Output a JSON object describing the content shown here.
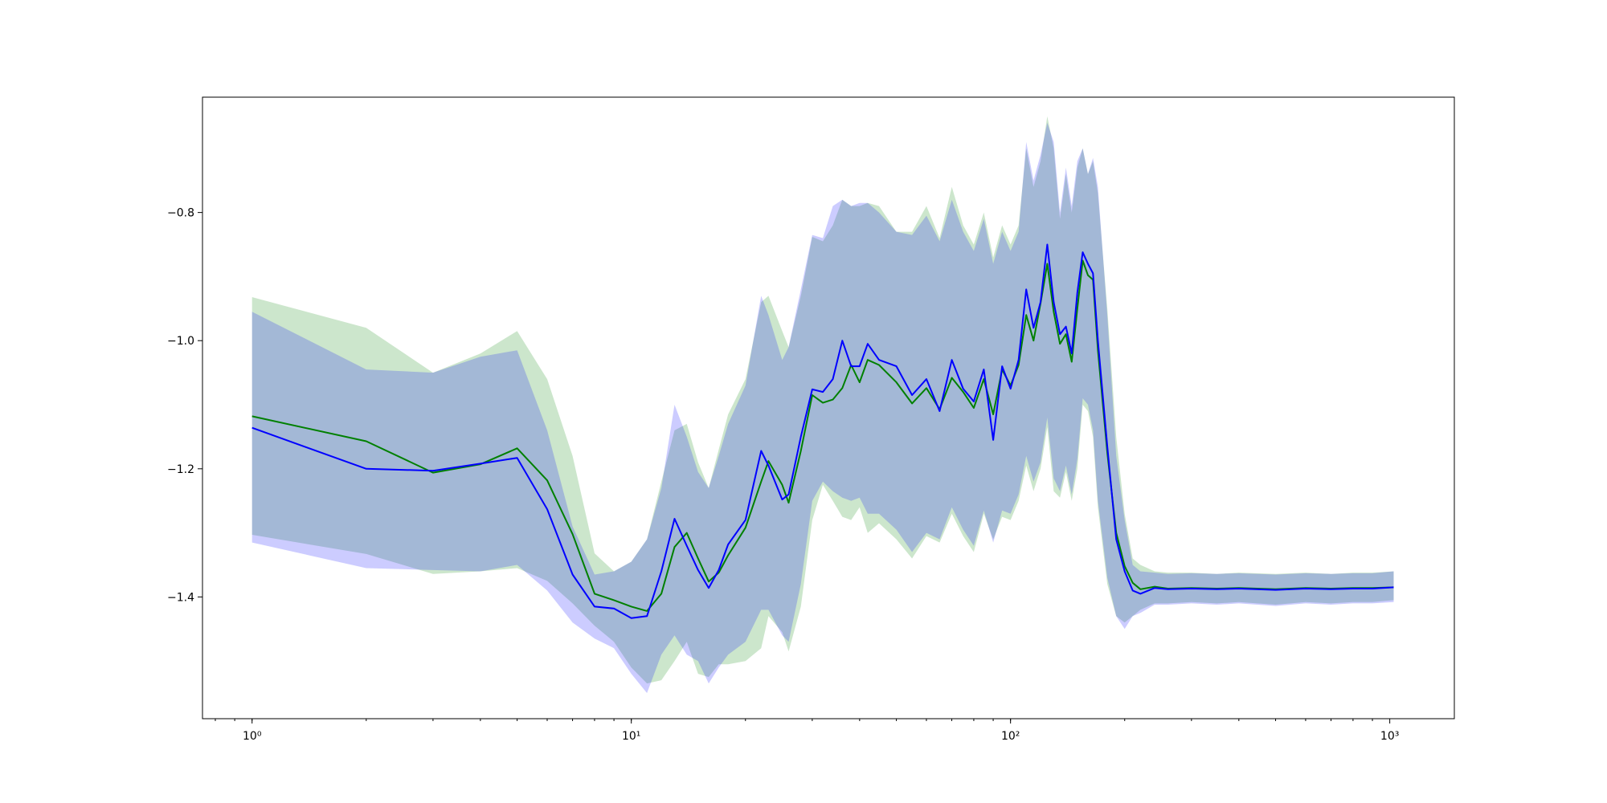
{
  "chart_data": {
    "type": "line",
    "title": "",
    "xlabel": "",
    "ylabel": "",
    "x_scale": "log",
    "xlim": [
      0.74,
      1480
    ],
    "ylim": [
      -1.59,
      -0.62
    ],
    "grid": false,
    "legend": "none",
    "x_ticks": [
      {
        "value": 1,
        "label": "10⁰"
      },
      {
        "value": 10,
        "label": "10¹"
      },
      {
        "value": 100,
        "label": "10²"
      },
      {
        "value": 1000,
        "label": "10³"
      }
    ],
    "y_ticks": [
      {
        "value": -1.4,
        "label": "−1.4"
      },
      {
        "value": -1.2,
        "label": "−1.2"
      },
      {
        "value": -1.0,
        "label": "−1.0"
      },
      {
        "value": -0.8,
        "label": "−0.8"
      }
    ],
    "series": [
      {
        "color": "#008000",
        "band_color": "#008000",
        "band_opacity": 0.2,
        "x": [
          1,
          2,
          3,
          4,
          5,
          6,
          7,
          8,
          9,
          10,
          11,
          12,
          13,
          14,
          15,
          16,
          17,
          18,
          20,
          22,
          23,
          25,
          26,
          28,
          30,
          32,
          34,
          36,
          38,
          40,
          42,
          45,
          50,
          55,
          60,
          65,
          70,
          75,
          80,
          85,
          90,
          95,
          100,
          105,
          110,
          115,
          120,
          125,
          130,
          135,
          140,
          145,
          150,
          155,
          160,
          165,
          170,
          180,
          190,
          200,
          210,
          220,
          240,
          260,
          300,
          350,
          400,
          500,
          600,
          700,
          800,
          900,
          1024
        ],
        "y": [
          -1.118,
          -1.157,
          -1.206,
          -1.193,
          -1.168,
          -1.218,
          -1.302,
          -1.395,
          -1.405,
          -1.415,
          -1.422,
          -1.395,
          -1.322,
          -1.3,
          -1.34,
          -1.376,
          -1.362,
          -1.335,
          -1.292,
          -1.22,
          -1.188,
          -1.225,
          -1.253,
          -1.172,
          -1.085,
          -1.097,
          -1.092,
          -1.074,
          -1.038,
          -1.065,
          -1.03,
          -1.038,
          -1.065,
          -1.098,
          -1.074,
          -1.107,
          -1.058,
          -1.08,
          -1.105,
          -1.06,
          -1.115,
          -1.045,
          -1.07,
          -1.038,
          -0.96,
          -1.0,
          -0.942,
          -0.88,
          -0.955,
          -1.005,
          -0.99,
          -1.033,
          -0.95,
          -0.875,
          -0.898,
          -0.905,
          -1.015,
          -1.175,
          -1.3,
          -1.352,
          -1.378,
          -1.388,
          -1.384,
          -1.387,
          -1.386,
          -1.387,
          -1.386,
          -1.388,
          -1.386,
          -1.387,
          -1.386,
          -1.386,
          -1.385
        ],
        "lower": [
          -1.303,
          -1.333,
          -1.364,
          -1.36,
          -1.355,
          -1.375,
          -1.41,
          -1.445,
          -1.47,
          -1.51,
          -1.535,
          -1.53,
          -1.5,
          -1.47,
          -1.52,
          -1.525,
          -1.505,
          -1.505,
          -1.5,
          -1.48,
          -1.43,
          -1.455,
          -1.485,
          -1.415,
          -1.28,
          -1.225,
          -1.25,
          -1.275,
          -1.28,
          -1.26,
          -1.3,
          -1.285,
          -1.31,
          -1.34,
          -1.305,
          -1.315,
          -1.27,
          -1.305,
          -1.33,
          -1.27,
          -1.31,
          -1.275,
          -1.28,
          -1.25,
          -1.195,
          -1.235,
          -1.2,
          -1.135,
          -1.235,
          -1.245,
          -1.205,
          -1.25,
          -1.2,
          -1.1,
          -1.11,
          -1.15,
          -1.26,
          -1.38,
          -1.43,
          -1.44,
          -1.43,
          -1.42,
          -1.41,
          -1.41,
          -1.408,
          -1.41,
          -1.408,
          -1.412,
          -1.408,
          -1.41,
          -1.408,
          -1.408,
          -1.405
        ],
        "upper": [
          -0.932,
          -0.98,
          -1.05,
          -1.02,
          -0.985,
          -1.06,
          -1.18,
          -1.332,
          -1.36,
          -1.345,
          -1.31,
          -1.22,
          -1.14,
          -1.13,
          -1.19,
          -1.23,
          -1.17,
          -1.115,
          -1.06,
          -0.94,
          -0.93,
          -0.985,
          -1.01,
          -0.93,
          -0.838,
          -0.845,
          -0.82,
          -0.78,
          -0.79,
          -0.79,
          -0.785,
          -0.79,
          -0.83,
          -0.83,
          -0.79,
          -0.84,
          -0.76,
          -0.82,
          -0.85,
          -0.8,
          -0.87,
          -0.82,
          -0.85,
          -0.82,
          -0.7,
          -0.76,
          -0.72,
          -0.65,
          -0.7,
          -0.81,
          -0.74,
          -0.8,
          -0.73,
          -0.7,
          -0.74,
          -0.72,
          -0.77,
          -0.95,
          -1.15,
          -1.27,
          -1.34,
          -1.35,
          -1.36,
          -1.362,
          -1.362,
          -1.364,
          -1.362,
          -1.364,
          -1.362,
          -1.364,
          -1.362,
          -1.362,
          -1.36
        ]
      },
      {
        "color": "#0000ff",
        "band_color": "#0000ff",
        "band_opacity": 0.2,
        "x": [
          1,
          2,
          3,
          4,
          5,
          6,
          7,
          8,
          9,
          10,
          11,
          12,
          13,
          14,
          15,
          16,
          17,
          18,
          20,
          22,
          23,
          25,
          26,
          28,
          30,
          32,
          34,
          36,
          38,
          40,
          42,
          45,
          50,
          55,
          60,
          65,
          70,
          75,
          80,
          85,
          90,
          95,
          100,
          105,
          110,
          115,
          120,
          125,
          130,
          135,
          140,
          145,
          150,
          155,
          160,
          165,
          170,
          180,
          190,
          200,
          210,
          220,
          240,
          260,
          300,
          350,
          400,
          500,
          600,
          700,
          800,
          900,
          1024
        ],
        "y": [
          -1.136,
          -1.2,
          -1.203,
          -1.192,
          -1.183,
          -1.263,
          -1.365,
          -1.415,
          -1.418,
          -1.433,
          -1.43,
          -1.36,
          -1.278,
          -1.32,
          -1.358,
          -1.386,
          -1.358,
          -1.318,
          -1.28,
          -1.172,
          -1.195,
          -1.248,
          -1.24,
          -1.15,
          -1.076,
          -1.08,
          -1.06,
          -1.0,
          -1.04,
          -1.04,
          -1.005,
          -1.03,
          -1.04,
          -1.085,
          -1.06,
          -1.11,
          -1.03,
          -1.075,
          -1.095,
          -1.045,
          -1.155,
          -1.04,
          -1.075,
          -1.03,
          -0.92,
          -0.98,
          -0.94,
          -0.85,
          -0.94,
          -0.99,
          -0.978,
          -1.02,
          -0.925,
          -0.862,
          -0.88,
          -0.895,
          -1.0,
          -1.165,
          -1.31,
          -1.36,
          -1.39,
          -1.395,
          -1.386,
          -1.388,
          -1.387,
          -1.388,
          -1.387,
          -1.389,
          -1.387,
          -1.388,
          -1.387,
          -1.387,
          -1.385
        ],
        "lower": [
          -1.315,
          -1.355,
          -1.358,
          -1.36,
          -1.35,
          -1.39,
          -1.44,
          -1.465,
          -1.48,
          -1.52,
          -1.55,
          -1.49,
          -1.46,
          -1.49,
          -1.5,
          -1.535,
          -1.51,
          -1.49,
          -1.47,
          -1.42,
          -1.42,
          -1.46,
          -1.47,
          -1.38,
          -1.25,
          -1.22,
          -1.235,
          -1.245,
          -1.25,
          -1.245,
          -1.27,
          -1.27,
          -1.295,
          -1.33,
          -1.3,
          -1.31,
          -1.26,
          -1.295,
          -1.32,
          -1.265,
          -1.315,
          -1.265,
          -1.27,
          -1.24,
          -1.18,
          -1.22,
          -1.19,
          -1.12,
          -1.215,
          -1.235,
          -1.195,
          -1.24,
          -1.185,
          -1.09,
          -1.1,
          -1.14,
          -1.25,
          -1.37,
          -1.43,
          -1.45,
          -1.43,
          -1.425,
          -1.412,
          -1.412,
          -1.41,
          -1.412,
          -1.41,
          -1.414,
          -1.41,
          -1.412,
          -1.41,
          -1.41,
          -1.408
        ],
        "upper": [
          -0.955,
          -1.045,
          -1.05,
          -1.025,
          -1.015,
          -1.14,
          -1.29,
          -1.365,
          -1.36,
          -1.345,
          -1.31,
          -1.23,
          -1.1,
          -1.15,
          -1.205,
          -1.23,
          -1.18,
          -1.13,
          -1.07,
          -0.93,
          -0.96,
          -1.03,
          -1.01,
          -0.92,
          -0.835,
          -0.84,
          -0.79,
          -0.78,
          -0.79,
          -0.785,
          -0.785,
          -0.8,
          -0.83,
          -0.835,
          -0.805,
          -0.845,
          -0.78,
          -0.83,
          -0.86,
          -0.81,
          -0.88,
          -0.83,
          -0.86,
          -0.83,
          -0.69,
          -0.75,
          -0.71,
          -0.66,
          -0.69,
          -0.8,
          -0.73,
          -0.79,
          -0.72,
          -0.7,
          -0.74,
          -0.715,
          -0.76,
          -0.96,
          -1.18,
          -1.28,
          -1.35,
          -1.36,
          -1.362,
          -1.364,
          -1.363,
          -1.364,
          -1.363,
          -1.365,
          -1.363,
          -1.364,
          -1.363,
          -1.363,
          -1.36
        ]
      }
    ]
  }
}
